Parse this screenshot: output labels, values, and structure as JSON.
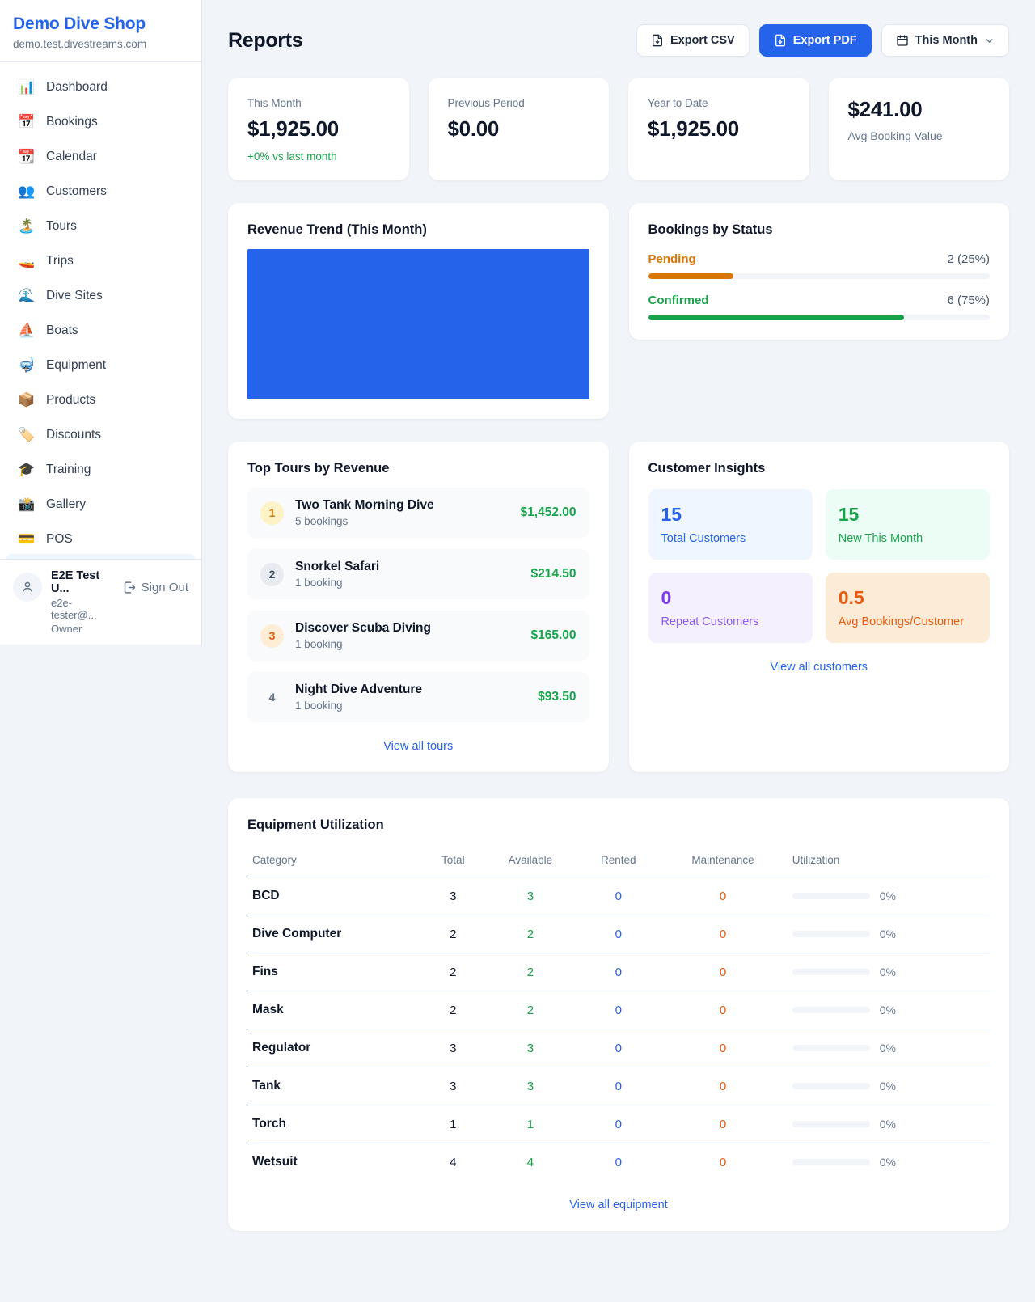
{
  "sidebar": {
    "title": "Demo Dive Shop",
    "subdomain": "demo.test.divestreams.com",
    "items": [
      {
        "icon": "📊",
        "label": "Dashboard"
      },
      {
        "icon": "📅",
        "label": "Bookings"
      },
      {
        "icon": "📆",
        "label": "Calendar"
      },
      {
        "icon": "👥",
        "label": "Customers"
      },
      {
        "icon": "🏝️",
        "label": "Tours"
      },
      {
        "icon": "🚤",
        "label": "Trips"
      },
      {
        "icon": "🌊",
        "label": "Dive Sites"
      },
      {
        "icon": "⛵",
        "label": "Boats"
      },
      {
        "icon": "🤿",
        "label": "Equipment"
      },
      {
        "icon": "📦",
        "label": "Products"
      },
      {
        "icon": "🏷️",
        "label": "Discounts"
      },
      {
        "icon": "🎓",
        "label": "Training"
      },
      {
        "icon": "📸",
        "label": "Gallery"
      },
      {
        "icon": "💳",
        "label": "POS"
      }
    ],
    "user": {
      "name": "E2E Test U...",
      "email": "e2e-tester@...",
      "role": "Owner",
      "sign_out": "Sign Out"
    }
  },
  "header": {
    "title": "Reports",
    "export_csv": "Export CSV",
    "export_pdf": "Export PDF",
    "period": "This Month"
  },
  "stats": [
    {
      "label": "This Month",
      "value": "$1,925.00",
      "delta": "+0% vs last month"
    },
    {
      "label": "Previous Period",
      "value": "$0.00"
    },
    {
      "label": "Year to Date",
      "value": "$1,925.00"
    },
    {
      "label": "Avg Booking Value",
      "value": "$241.00"
    }
  ],
  "revenue_trend": {
    "title": "Revenue Trend (This Month)",
    "bar_color": "#2563eb"
  },
  "bookings_by_status": {
    "title": "Bookings by Status",
    "rows": [
      {
        "label": "Pending",
        "value": "2 (25%)",
        "pct": 25,
        "color": "#d97706"
      },
      {
        "label": "Confirmed",
        "value": "6 (75%)",
        "pct": 75,
        "color": "#16a34a"
      }
    ]
  },
  "top_tours": {
    "title": "Top Tours by Revenue",
    "link": "View all tours",
    "rows": [
      {
        "rank": "1",
        "name": "Two Tank Morning Dive",
        "bookings": "5 bookings",
        "amount": "$1,452.00"
      },
      {
        "rank": "2",
        "name": "Snorkel Safari",
        "bookings": "1 booking",
        "amount": "$214.50"
      },
      {
        "rank": "3",
        "name": "Discover Scuba Diving",
        "bookings": "1 booking",
        "amount": "$165.00"
      },
      {
        "rank": "4",
        "name": "Night Dive Adventure",
        "bookings": "1 booking",
        "amount": "$93.50"
      }
    ]
  },
  "customer_insights": {
    "title": "Customer Insights",
    "link": "View all customers",
    "tiles": [
      {
        "value": "15",
        "label": "Total Customers",
        "color": "#2563eb"
      },
      {
        "value": "15",
        "label": "New This Month",
        "color": "#16a34a"
      },
      {
        "value": "0",
        "label": "Repeat Customers",
        "color": "#7c3aed"
      },
      {
        "value": "0.5",
        "label": "Avg Bookings/Customer",
        "color": "#ea580c"
      }
    ]
  },
  "equipment": {
    "title": "Equipment Utilization",
    "link": "View all equipment",
    "columns": [
      "Category",
      "Total",
      "Available",
      "Rented",
      "Maintenance",
      "Utilization"
    ],
    "rows": [
      {
        "category": "BCD",
        "total": "3",
        "available": "3",
        "rented": "0",
        "maintenance": "0",
        "utilization": "0%",
        "pct": 0
      },
      {
        "category": "Dive Computer",
        "total": "2",
        "available": "2",
        "rented": "0",
        "maintenance": "0",
        "utilization": "0%",
        "pct": 0
      },
      {
        "category": "Fins",
        "total": "2",
        "available": "2",
        "rented": "0",
        "maintenance": "0",
        "utilization": "0%",
        "pct": 0
      },
      {
        "category": "Mask",
        "total": "2",
        "available": "2",
        "rented": "0",
        "maintenance": "0",
        "utilization": "0%",
        "pct": 0
      },
      {
        "category": "Regulator",
        "total": "3",
        "available": "3",
        "rented": "0",
        "maintenance": "0",
        "utilization": "0%",
        "pct": 0
      },
      {
        "category": "Tank",
        "total": "3",
        "available": "3",
        "rented": "0",
        "maintenance": "0",
        "utilization": "0%",
        "pct": 0
      },
      {
        "category": "Torch",
        "total": "1",
        "available": "1",
        "rented": "0",
        "maintenance": "0",
        "utilization": "0%",
        "pct": 0
      },
      {
        "category": "Wetsuit",
        "total": "4",
        "available": "4",
        "rented": "0",
        "maintenance": "0",
        "utilization": "0%",
        "pct": 0
      }
    ]
  }
}
